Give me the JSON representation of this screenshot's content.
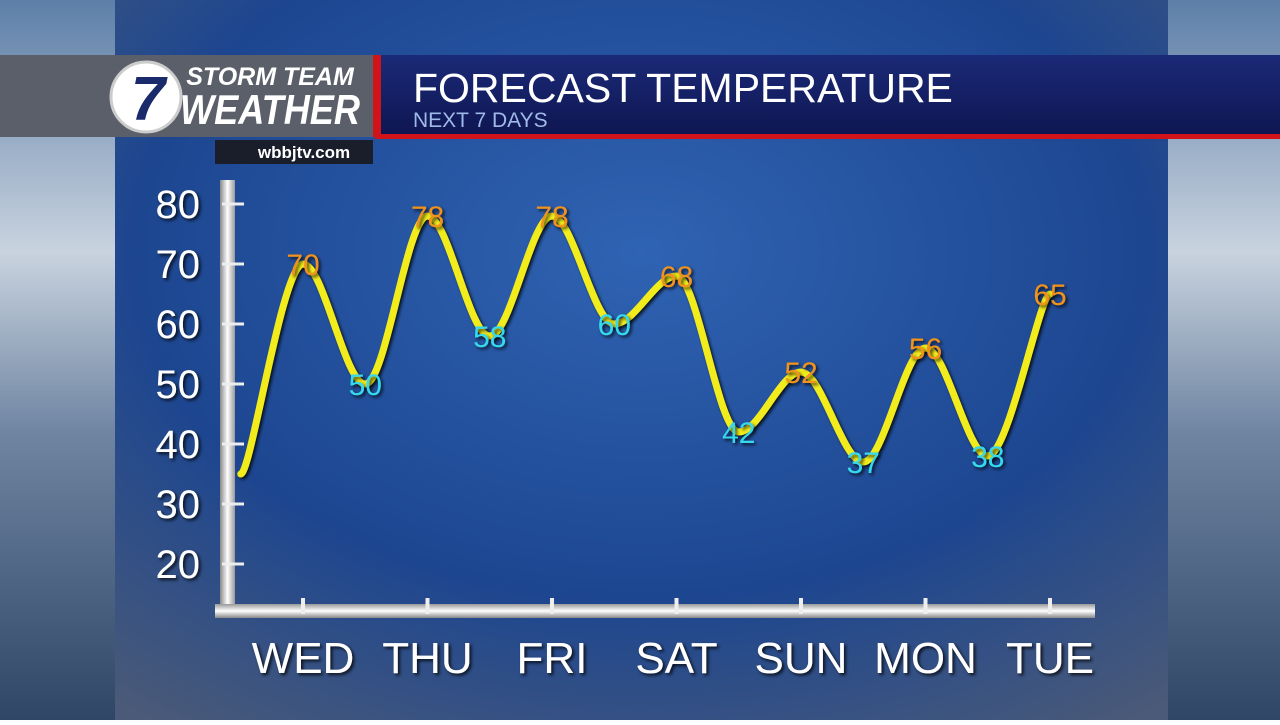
{
  "header": {
    "logo_number": "7",
    "logo_top": "STORM TEAM",
    "logo_bottom": "WEATHER",
    "website": "wbbjtv.com"
  },
  "chart_data": {
    "type": "line",
    "title": "FORECAST TEMPERATURE",
    "subtitle": "NEXT 7 DAYS",
    "categories": [
      null,
      "WED",
      null,
      "THU",
      null,
      "FRI",
      null,
      "SAT",
      null,
      "SUN",
      null,
      "MON",
      null,
      "TUE"
    ],
    "series": [
      {
        "name": null,
        "color": "#f2ec1c",
        "values": [
          35,
          70,
          50,
          78,
          58,
          78,
          60,
          68,
          42,
          52,
          37,
          56,
          38,
          65
        ],
        "value_labels": [
          null,
          "70",
          "50",
          "78",
          "58",
          "78",
          "60",
          "68",
          "42",
          "52",
          "37",
          "56",
          "38",
          "65"
        ]
      }
    ],
    "peak_label_color": "#f0921c",
    "trough_label_color": "#36d9ee",
    "ylim": [
      13,
      84
    ],
    "yticks": [
      20,
      30,
      40,
      50,
      60,
      70,
      80
    ],
    "grid": false
  }
}
